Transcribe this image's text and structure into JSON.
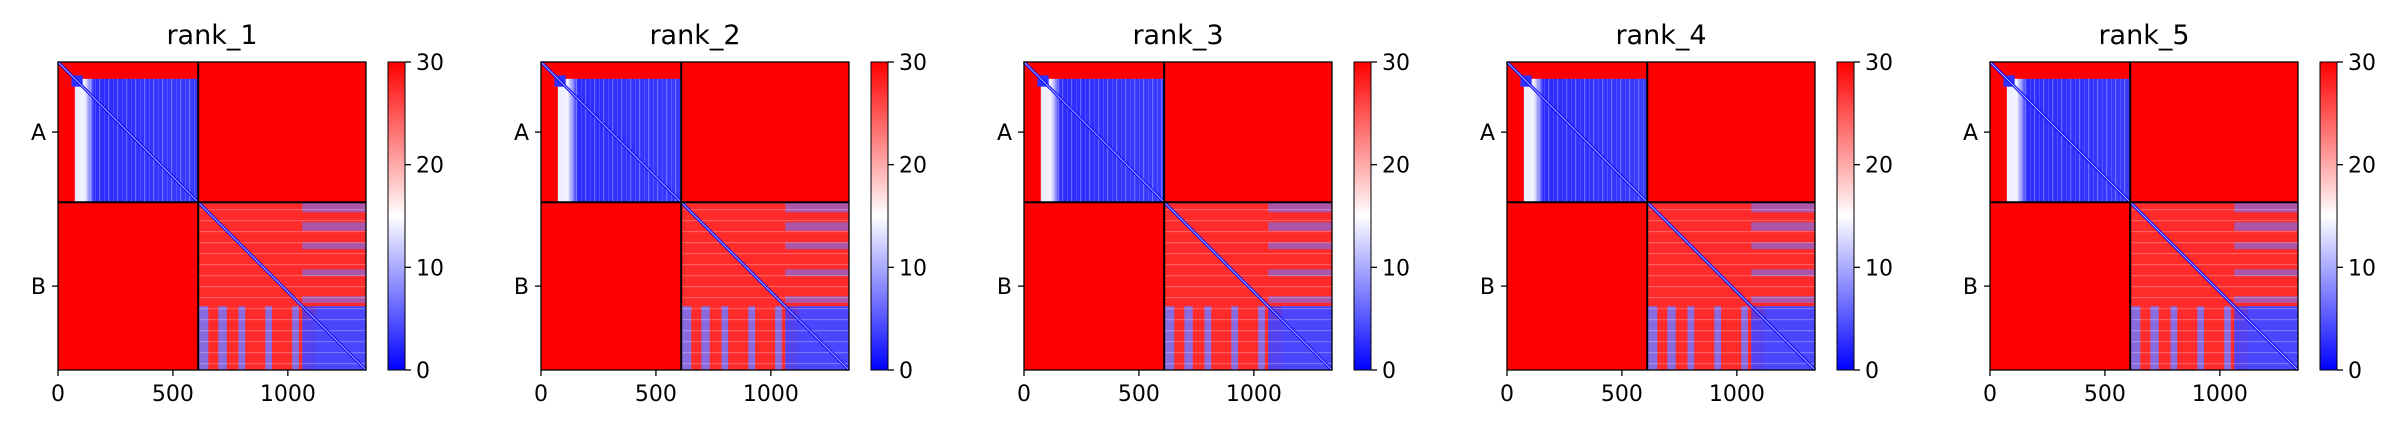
{
  "chart_data": [
    {
      "type": "heatmap",
      "title": "rank_1",
      "chains": [
        "A",
        "B"
      ],
      "chain_boundary": 610,
      "x_ticks": [
        0,
        500,
        1000
      ],
      "xlim": [
        0,
        1340
      ],
      "colorbar": {
        "min": 0,
        "max": 30,
        "ticks": [
          0,
          10,
          20,
          30
        ],
        "colors": [
          "#0000ff",
          "#ffffff",
          "#ff0000"
        ]
      }
    },
    {
      "type": "heatmap",
      "title": "rank_2",
      "chains": [
        "A",
        "B"
      ],
      "chain_boundary": 610,
      "x_ticks": [
        0,
        500,
        1000
      ],
      "xlim": [
        0,
        1340
      ],
      "colorbar": {
        "min": 0,
        "max": 30,
        "ticks": [
          0,
          10,
          20,
          30
        ],
        "colors": [
          "#0000ff",
          "#ffffff",
          "#ff0000"
        ]
      }
    },
    {
      "type": "heatmap",
      "title": "rank_3",
      "chains": [
        "A",
        "B"
      ],
      "chain_boundary": 610,
      "x_ticks": [
        0,
        500,
        1000
      ],
      "xlim": [
        0,
        1340
      ],
      "colorbar": {
        "min": 0,
        "max": 30,
        "ticks": [
          0,
          10,
          20,
          30
        ],
        "colors": [
          "#0000ff",
          "#ffffff",
          "#ff0000"
        ]
      }
    },
    {
      "type": "heatmap",
      "title": "rank_4",
      "chains": [
        "A",
        "B"
      ],
      "chain_boundary": 610,
      "x_ticks": [
        0,
        500,
        1000
      ],
      "xlim": [
        0,
        1340
      ],
      "colorbar": {
        "min": 0,
        "max": 30,
        "ticks": [
          0,
          10,
          20,
          30
        ],
        "colors": [
          "#0000ff",
          "#ffffff",
          "#ff0000"
        ]
      }
    },
    {
      "type": "heatmap",
      "title": "rank_5",
      "chains": [
        "A",
        "B"
      ],
      "chain_boundary": 610,
      "x_ticks": [
        0,
        500,
        1000
      ],
      "xlim": [
        0,
        1340
      ],
      "colorbar": {
        "min": 0,
        "max": 30,
        "ticks": [
          0,
          10,
          20,
          30
        ],
        "colors": [
          "#0000ff",
          "#ffffff",
          "#ff0000"
        ]
      }
    }
  ]
}
